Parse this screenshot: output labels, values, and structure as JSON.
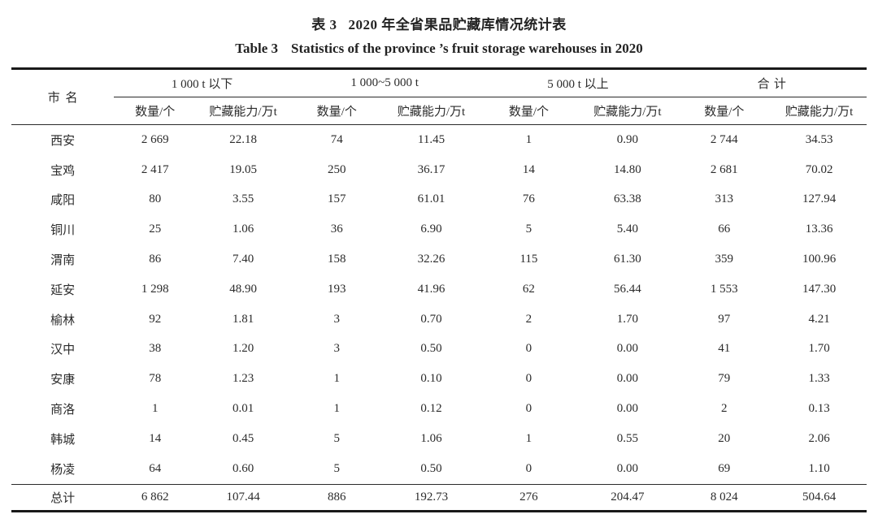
{
  "caption": {
    "zh_label": "表 3",
    "zh_text": "2020 年全省果品贮藏库情况统计表",
    "en_label": "Table 3",
    "en_text": "Statistics of the province ’s fruit storage warehouses in 2020"
  },
  "header": {
    "city": "市名",
    "groups": [
      {
        "label": "1 000 t 以下"
      },
      {
        "label": "1 000~5 000 t"
      },
      {
        "label": "5 000 t 以上"
      },
      {
        "label": "合计"
      }
    ],
    "subcolumns": [
      "数量/个",
      "贮藏能力/万t",
      "数量/个",
      "贮藏能力/万t",
      "数量/个",
      "贮藏能力/万t",
      "数量/个",
      "贮藏能力/万t"
    ]
  },
  "rows": [
    {
      "city": "西安",
      "values": [
        "2 669",
        "22.18",
        "74",
        "11.45",
        "1",
        "0.90",
        "2 744",
        "34.53"
      ]
    },
    {
      "city": "宝鸡",
      "values": [
        "2 417",
        "19.05",
        "250",
        "36.17",
        "14",
        "14.80",
        "2 681",
        "70.02"
      ]
    },
    {
      "city": "咸阳",
      "values": [
        "80",
        "3.55",
        "157",
        "61.01",
        "76",
        "63.38",
        "313",
        "127.94"
      ]
    },
    {
      "city": "铜川",
      "values": [
        "25",
        "1.06",
        "36",
        "6.90",
        "5",
        "5.40",
        "66",
        "13.36"
      ]
    },
    {
      "city": "渭南",
      "values": [
        "86",
        "7.40",
        "158",
        "32.26",
        "115",
        "61.30",
        "359",
        "100.96"
      ]
    },
    {
      "city": "延安",
      "values": [
        "1 298",
        "48.90",
        "193",
        "41.96",
        "62",
        "56.44",
        "1 553",
        "147.30"
      ]
    },
    {
      "city": "榆林",
      "values": [
        "92",
        "1.81",
        "3",
        "0.70",
        "2",
        "1.70",
        "97",
        "4.21"
      ]
    },
    {
      "city": "汉中",
      "values": [
        "38",
        "1.20",
        "3",
        "0.50",
        "0",
        "0.00",
        "41",
        "1.70"
      ]
    },
    {
      "city": "安康",
      "values": [
        "78",
        "1.23",
        "1",
        "0.10",
        "0",
        "0.00",
        "79",
        "1.33"
      ]
    },
    {
      "city": "商洛",
      "values": [
        "1",
        "0.01",
        "1",
        "0.12",
        "0",
        "0.00",
        "2",
        "0.13"
      ]
    },
    {
      "city": "韩城",
      "values": [
        "14",
        "0.45",
        "5",
        "1.06",
        "1",
        "0.55",
        "20",
        "2.06"
      ]
    },
    {
      "city": "杨凌",
      "values": [
        "64",
        "0.60",
        "5",
        "0.50",
        "0",
        "0.00",
        "69",
        "1.10"
      ]
    }
  ],
  "total": {
    "city": "总计",
    "values": [
      "6 862",
      "107.44",
      "886",
      "192.73",
      "276",
      "204.47",
      "8 024",
      "504.64"
    ]
  }
}
